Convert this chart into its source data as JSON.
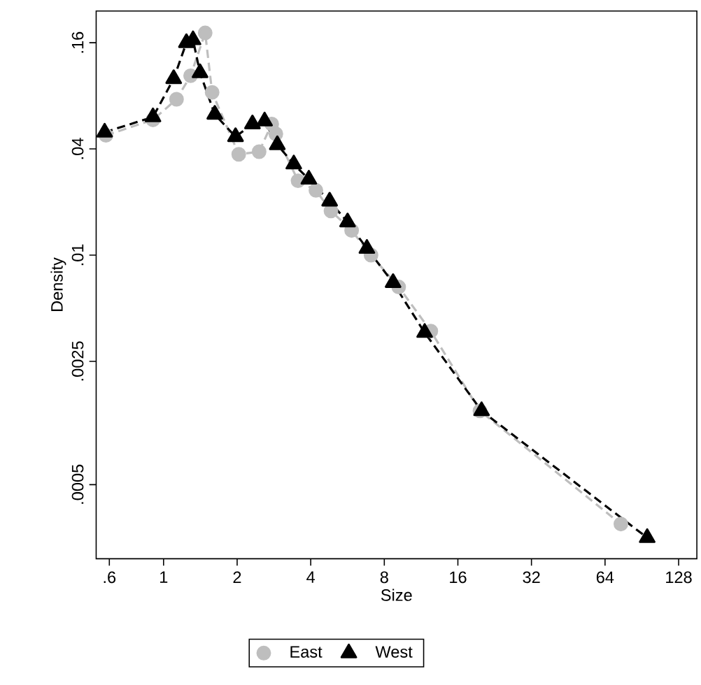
{
  "chart_data": {
    "type": "line",
    "xlabel": "Size",
    "ylabel": "Density",
    "log": "xy",
    "xlim": [
      0.53,
      152
    ],
    "ylim": [
      0.00019,
      0.242
    ],
    "xticks": [
      {
        "value": 0.6,
        "label": ".6"
      },
      1,
      2,
      4,
      8,
      16,
      32,
      64,
      128
    ],
    "yticks": [
      {
        "value": 0.0005,
        "label": ".0005"
      },
      {
        "value": 0.0025,
        "label": ".0025"
      },
      {
        "value": 0.01,
        "label": ".01"
      },
      {
        "value": 0.04,
        "label": ".04"
      },
      {
        "value": 0.16,
        "label": ".16"
      }
    ],
    "grid": false,
    "legend": "bottom",
    "line_style": "dashed",
    "series": [
      {
        "name": "East",
        "color": "#bebebe",
        "marker": "circle",
        "x": [
          0.581,
          0.905,
          1.13,
          1.29,
          1.48,
          1.58,
          2.03,
          2.46,
          2.77,
          2.88,
          3.55,
          4.2,
          4.84,
          5.88,
          7.06,
          9.16,
          12.4,
          19.7,
          74.3
        ],
        "values": [
          0.0478,
          0.0585,
          0.0765,
          0.104,
          0.182,
          0.0837,
          0.0373,
          0.0386,
          0.0554,
          0.0487,
          0.0264,
          0.0233,
          0.0178,
          0.0138,
          0.01,
          0.0066,
          0.00371,
          0.00131,
          0.000299
        ]
      },
      {
        "name": "West",
        "color": "#000000",
        "marker": "triangle",
        "x": [
          0.574,
          0.905,
          1.1,
          1.24,
          1.32,
          1.41,
          1.62,
          1.97,
          2.31,
          2.59,
          2.92,
          3.41,
          3.93,
          4.78,
          5.66,
          6.79,
          8.69,
          11.7,
          20.0,
          95.2
        ],
        "values": [
          0.0497,
          0.0607,
          0.1,
          0.16,
          0.166,
          0.108,
          0.0628,
          0.0469,
          0.0554,
          0.0575,
          0.0422,
          0.0328,
          0.0269,
          0.0202,
          0.0154,
          0.0109,
          0.00698,
          0.00364,
          0.00131,
          0.00025
        ]
      }
    ]
  }
}
